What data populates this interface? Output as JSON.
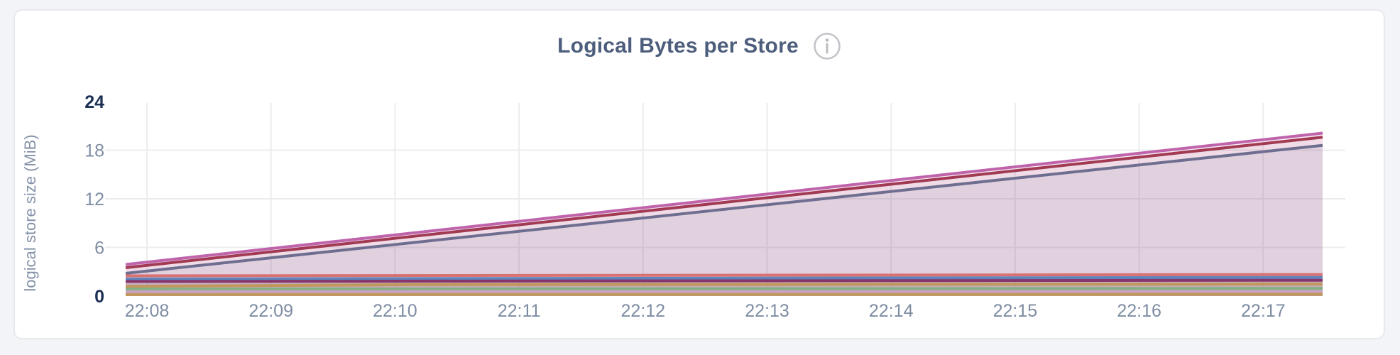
{
  "header": {
    "title": "Logical Bytes per Store"
  },
  "colors": {
    "background": "#f3f4f7",
    "card_background": "#ffffff",
    "card_border": "#e7e8ec",
    "grid": "#ececef",
    "tick_label": "#7e8ca2",
    "tick_label_emphasis": "#1c3054",
    "title": "#4d5d7c",
    "info_icon": "#c3c4c9"
  },
  "chart_data": {
    "type": "area",
    "title": "Logical Bytes per Store",
    "xlabel": "",
    "ylabel": "logical store size (MiB)",
    "x_ticks": [
      "22:08",
      "22:09",
      "22:10",
      "22:11",
      "22:12",
      "22:13",
      "22:14",
      "22:15",
      "22:16",
      "22:17"
    ],
    "y_ticks": [
      0,
      6,
      12,
      18,
      24
    ],
    "y_ticks_emphasized": [
      0,
      24
    ],
    "ylim": [
      0,
      24
    ],
    "grid": true,
    "legend_position": "none",
    "note": "x values are fractions of the plotted time span (starts just before 22:08, ends just after 22:17); y values in MiB",
    "series": [
      {
        "color": "#bf64ab",
        "fill_opacity": 0.14,
        "points": [
          [
            0,
            3.9
          ],
          [
            1,
            20.1
          ]
        ]
      },
      {
        "color": "#a13a52",
        "fill_opacity": 0.07,
        "points": [
          [
            0,
            3.5
          ],
          [
            1,
            19.6
          ]
        ]
      },
      {
        "color": "#6e6e90",
        "fill_opacity": 0.1,
        "points": [
          [
            0,
            2.8
          ],
          [
            1,
            18.6
          ]
        ]
      },
      {
        "color": "#d87272",
        "fill_opacity": 0.1,
        "points": [
          [
            0,
            2.5
          ],
          [
            1,
            2.65
          ]
        ]
      },
      {
        "color": "#5f84bc",
        "fill_opacity": 0.13,
        "points": [
          [
            0,
            2.1
          ],
          [
            1,
            2.3
          ]
        ]
      },
      {
        "color": "#86366b",
        "fill_opacity": 0.1,
        "points": [
          [
            0,
            1.8
          ],
          [
            1,
            1.95
          ]
        ]
      },
      {
        "color": "#c0985c",
        "fill_opacity": 0.14,
        "points": [
          [
            0,
            1.2
          ],
          [
            0.25,
            1.42
          ],
          [
            1,
            1.48
          ]
        ]
      },
      {
        "color": "#81b183",
        "fill_opacity": 0.14,
        "points": [
          [
            0,
            0.85
          ],
          [
            1,
            0.95
          ]
        ]
      },
      {
        "color": "#c9a2c2",
        "fill_opacity": 0.16,
        "points": [
          [
            0,
            0.55
          ],
          [
            1,
            0.6
          ]
        ]
      },
      {
        "color": "#c0985c",
        "fill_opacity": 0.18,
        "points": [
          [
            0,
            0.18
          ],
          [
            1,
            0.22
          ]
        ]
      }
    ]
  }
}
